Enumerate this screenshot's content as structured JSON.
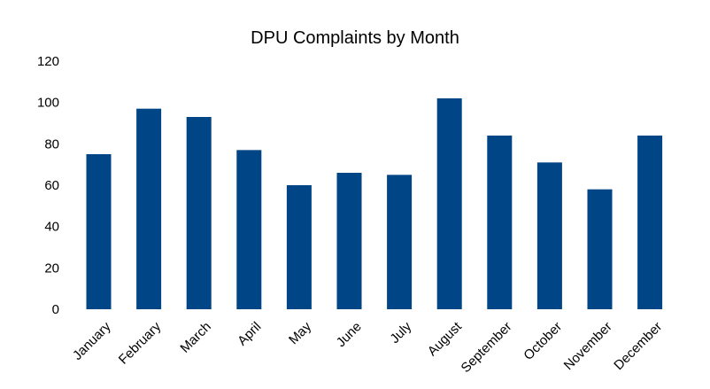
{
  "chart_data": {
    "type": "bar",
    "title": "DPU Complaints by Month",
    "xlabel": "",
    "ylabel": "",
    "categories": [
      "January",
      "February",
      "March",
      "April",
      "May",
      "June",
      "July",
      "August",
      "September",
      "October",
      "November",
      "December"
    ],
    "values": [
      75,
      97,
      93,
      77,
      60,
      66,
      65,
      102,
      84,
      71,
      58,
      84
    ],
    "ylim": [
      0,
      120
    ],
    "yticks": [
      0,
      20,
      40,
      60,
      80,
      100,
      120
    ],
    "grid": false,
    "legend": "none",
    "bar_color": "#004586"
  }
}
